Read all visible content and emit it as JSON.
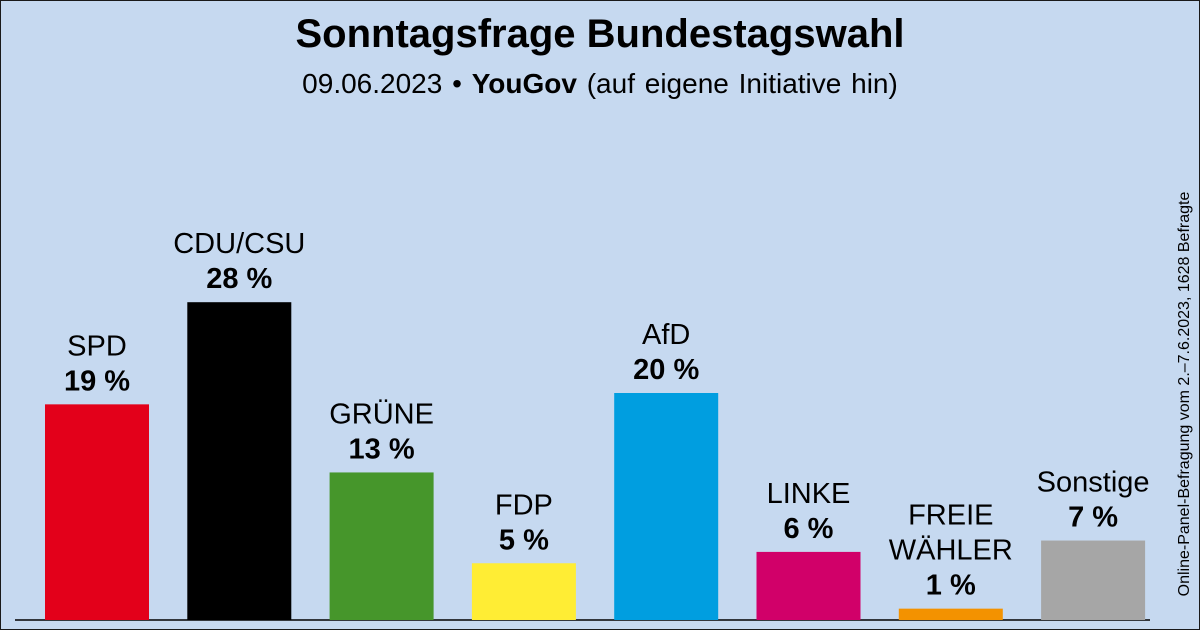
{
  "header": {
    "title": "Sonntagsfrage Bundestagswahl",
    "date": "09.06.2023",
    "separator": "•",
    "institute": "YouGov",
    "note": "(auf eigene Initiative hin)"
  },
  "source_note": "Online-Panel-Befragung vom 2.–7.6.2023, 1628 Befragte",
  "chart_data": {
    "type": "bar",
    "title": "Sonntagsfrage Bundestagswahl",
    "categories": [
      "SPD",
      "CDU/CSU",
      "GRÜNE",
      "FDP",
      "AfD",
      "LINKE",
      "FREIE WÄHLER",
      "Sonstige"
    ],
    "label_lines": [
      [
        "SPD"
      ],
      [
        "CDU/CSU"
      ],
      [
        "GRÜNE"
      ],
      [
        "FDP"
      ],
      [
        "AfD"
      ],
      [
        "LINKE"
      ],
      [
        "FREIE",
        "WÄHLER"
      ],
      [
        "Sonstige"
      ]
    ],
    "values": [
      19,
      28,
      13,
      5,
      20,
      6,
      1,
      7
    ],
    "value_labels": [
      "19 %",
      "28 %",
      "13 %",
      "5 %",
      "20 %",
      "6 %",
      "1 %",
      "7 %"
    ],
    "colors": [
      "#e3001a",
      "#000000",
      "#46962b",
      "#ffed34",
      "#009ee0",
      "#d10069",
      "#f39200",
      "#a6a6a6"
    ],
    "unit": "%",
    "grid": false,
    "legend": "none"
  }
}
